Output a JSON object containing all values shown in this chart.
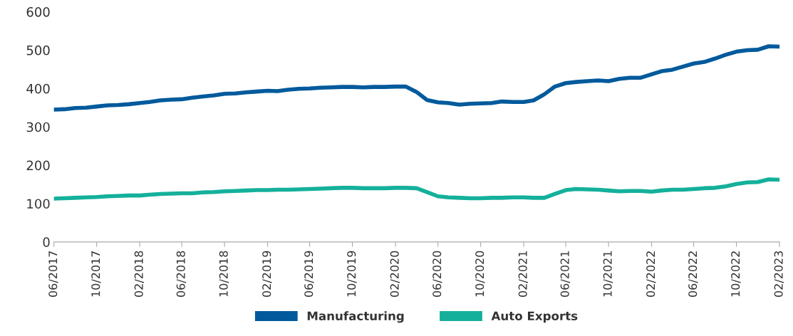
{
  "chart_data": {
    "type": "line",
    "x": [
      "2017-06",
      "2017-07",
      "2017-08",
      "2017-09",
      "2017-10",
      "2017-11",
      "2017-12",
      "2018-01",
      "2018-02",
      "2018-03",
      "2018-04",
      "2018-05",
      "2018-06",
      "2018-07",
      "2018-08",
      "2018-09",
      "2018-10",
      "2018-11",
      "2018-12",
      "2019-01",
      "2019-02",
      "2019-03",
      "2019-04",
      "2019-05",
      "2019-06",
      "2019-07",
      "2019-08",
      "2019-09",
      "2019-10",
      "2019-11",
      "2019-12",
      "2020-01",
      "2020-02",
      "2020-03",
      "2020-04",
      "2020-05",
      "2020-06",
      "2020-07",
      "2020-08",
      "2020-09",
      "2020-10",
      "2020-11",
      "2020-12",
      "2021-01",
      "2021-02",
      "2021-03",
      "2021-04",
      "2021-05",
      "2021-06",
      "2021-07",
      "2021-08",
      "2021-09",
      "2021-10",
      "2021-11",
      "2021-12",
      "2022-01",
      "2022-02",
      "2022-03",
      "2022-04",
      "2022-05",
      "2022-06",
      "2022-07",
      "2022-08",
      "2022-09",
      "2022-10",
      "2022-11",
      "2022-12",
      "2023-01",
      "2023-02"
    ],
    "series": [
      {
        "name": "Manufacturing",
        "color": "#005a9c",
        "values": [
          345,
          346,
          349,
          350,
          353,
          356,
          357,
          359,
          362,
          365,
          369,
          371,
          372,
          376,
          379,
          382,
          386,
          387,
          390,
          392,
          394,
          393,
          397,
          399,
          400,
          402,
          403,
          404,
          404,
          403,
          404,
          404,
          405,
          405,
          391,
          370,
          364,
          362,
          358,
          360,
          361,
          362,
          366,
          365,
          365,
          369,
          385,
          405,
          414,
          417,
          419,
          421,
          419,
          425,
          428,
          428,
          437,
          445,
          449,
          457,
          465,
          469,
          478,
          488,
          496,
          500,
          501,
          510,
          509
        ]
      },
      {
        "name": "Auto Exports",
        "color": "#14b09b",
        "values": [
          113,
          114,
          115,
          116,
          117,
          119,
          120,
          121,
          121,
          123,
          125,
          126,
          127,
          127,
          129,
          130,
          132,
          133,
          134,
          135,
          135,
          136,
          136,
          137,
          138,
          139,
          140,
          141,
          141,
          140,
          140,
          140,
          141,
          141,
          140,
          130,
          119,
          116,
          115,
          114,
          114,
          115,
          115,
          116,
          116,
          115,
          115,
          125,
          135,
          138,
          137,
          136,
          134,
          132,
          133,
          133,
          131,
          134,
          136,
          136,
          138,
          140,
          141,
          145,
          151,
          155,
          156,
          163,
          162
        ]
      }
    ],
    "xlim": [
      "2017-06",
      "2023-02"
    ],
    "xticks": [
      {
        "value": "2017-06",
        "label": "06/2017"
      },
      {
        "value": "2017-10",
        "label": "10/2017"
      },
      {
        "value": "2018-02",
        "label": "02/2018"
      },
      {
        "value": "2018-06",
        "label": "06/2018"
      },
      {
        "value": "2018-10",
        "label": "10/2018"
      },
      {
        "value": "2019-02",
        "label": "02/2019"
      },
      {
        "value": "2019-06",
        "label": "06/2019"
      },
      {
        "value": "2019-10",
        "label": "10/2019"
      },
      {
        "value": "2020-02",
        "label": "02/2020"
      },
      {
        "value": "2020-06",
        "label": "06/2020"
      },
      {
        "value": "2020-10",
        "label": "10/2020"
      },
      {
        "value": "2021-02",
        "label": "02/2021"
      },
      {
        "value": "2021-06",
        "label": "06/2021"
      },
      {
        "value": "2021-10",
        "label": "10/2021"
      },
      {
        "value": "2022-02",
        "label": "02/2022"
      },
      {
        "value": "2022-06",
        "label": "06/2022"
      },
      {
        "value": "2022-10",
        "label": "10/2022"
      },
      {
        "value": "2023-02",
        "label": "02/2023"
      }
    ],
    "ylim": [
      0,
      600
    ],
    "yticks": [
      0,
      100,
      200,
      300,
      400,
      500,
      600
    ],
    "grid": false,
    "legend": "bottom",
    "marker": "none",
    "line_style": "solid"
  }
}
